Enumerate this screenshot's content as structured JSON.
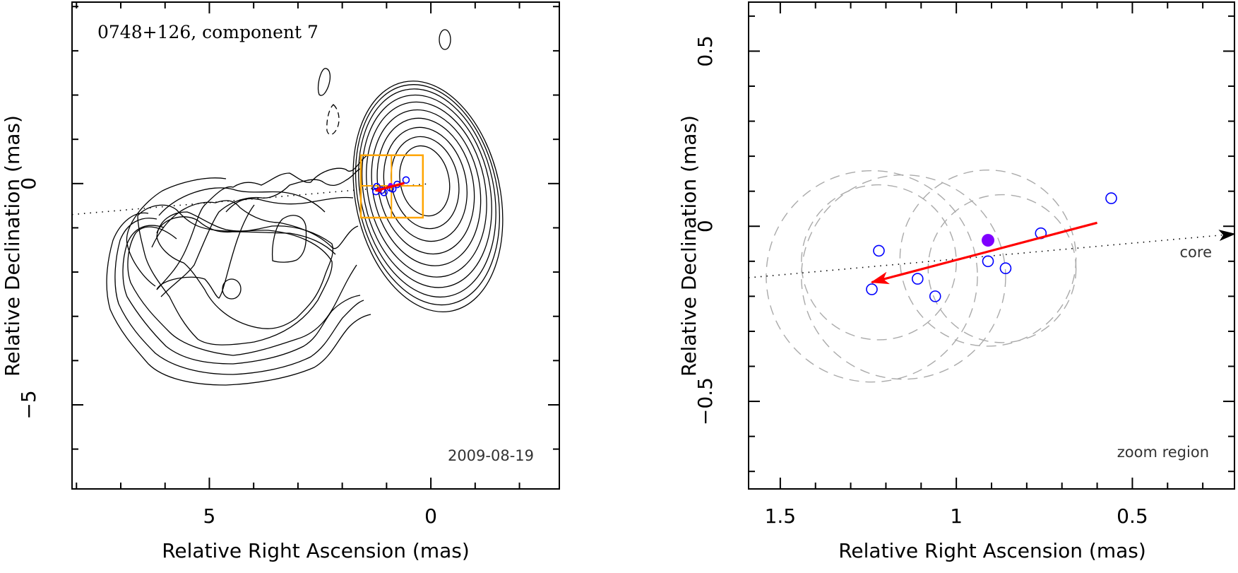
{
  "chart_data": [
    {
      "type": "scatter",
      "panel": "left",
      "title": "0748+126, component 7",
      "date_label": "2009-08-19",
      "xlabel": "Relative Right Ascension (mas)",
      "ylabel": "Relative Declination (mas)",
      "xlim": [
        8.1,
        -2.9
      ],
      "ylim": [
        -6.9,
        4.1
      ],
      "x_major_ticks": [
        5,
        0
      ],
      "x_tick_labels": [
        "5",
        "0"
      ],
      "x_minor_step": 1,
      "y_major_ticks": [
        0,
        -5
      ],
      "y_tick_labels": [
        "0",
        "−5"
      ],
      "y_minor_step": 1,
      "colors": {
        "box": "#ffa500",
        "points": "#0000ff",
        "mean": "#7f00ff",
        "arrow": "#ff0000",
        "contours": "#000000"
      },
      "zoom_box": {
        "x": [
          1.58,
          0.18
        ],
        "y": [
          0.64,
          -0.77
        ],
        "cross": [
          0.89,
          -0.05
        ]
      },
      "core_line": {
        "from": [
          8.1,
          -0.7
        ],
        "to": [
          0.0,
          0.0
        ]
      },
      "core_contours": {
        "center": [
          0.14,
          0.06
        ],
        "semi_axes": [
          [
            0.55,
            0.8
          ],
          [
            0.75,
            1.05
          ],
          [
            0.92,
            1.3
          ],
          [
            1.07,
            1.55
          ],
          [
            1.2,
            1.78
          ],
          [
            1.32,
            2.0
          ],
          [
            1.42,
            2.2
          ],
          [
            1.5,
            2.38
          ],
          [
            1.57,
            2.52
          ],
          [
            1.63,
            2.64
          ]
        ]
      },
      "points": [
        [
          1.22,
          -0.07
        ],
        [
          1.24,
          -0.18
        ],
        [
          1.11,
          -0.15
        ],
        [
          1.06,
          -0.2
        ],
        [
          0.91,
          -0.1
        ],
        [
          0.86,
          -0.12
        ],
        [
          0.76,
          -0.02
        ],
        [
          0.56,
          0.08
        ]
      ],
      "mean_point": [
        0.91,
        -0.04
      ],
      "arrow": {
        "from": [
          0.6,
          0.01
        ],
        "to": [
          1.24,
          -0.16
        ]
      }
    },
    {
      "type": "scatter",
      "panel": "right",
      "xlabel": "Relative Right Ascension (mas)",
      "ylabel": "Relative Declination (mas)",
      "xlim": [
        1.59,
        0.21
      ],
      "ylim": [
        -0.75,
        0.64
      ],
      "x_major_ticks": [
        1.5,
        1.0,
        0.5
      ],
      "x_tick_labels": [
        "1.5",
        "1",
        "0.5"
      ],
      "x_minor_step": 0.1,
      "y_major_ticks": [
        0.5,
        0,
        -0.5
      ],
      "y_tick_labels": [
        "0.5",
        "0",
        "−0.5"
      ],
      "y_minor_step": 0.1,
      "annotations": {
        "core": "core",
        "zoom_region": "zoom region"
      },
      "points": [
        [
          1.22,
          -0.07
        ],
        [
          1.24,
          -0.18
        ],
        [
          1.11,
          -0.15
        ],
        [
          1.06,
          -0.2
        ],
        [
          0.91,
          -0.1
        ],
        [
          0.86,
          -0.12
        ],
        [
          0.76,
          -0.02
        ],
        [
          0.56,
          0.08
        ]
      ],
      "mean_point": [
        0.91,
        -0.04
      ],
      "arrow": {
        "from": [
          0.6,
          0.01
        ],
        "to": [
          1.24,
          -0.16
        ]
      },
      "core_direction": {
        "from": [
          1.59,
          -0.147
        ],
        "to": [
          0.21,
          -0.022
        ]
      },
      "error_circles": [
        {
          "center": [
            1.24,
            -0.143
          ],
          "radius": 0.3
        },
        {
          "center": [
            1.15,
            -0.145
          ],
          "radius": 0.29
        },
        {
          "center": [
            1.22,
            -0.103
          ],
          "radius": 0.22
        },
        {
          "center": [
            0.91,
            -0.091
          ],
          "radius": 0.25
        },
        {
          "center": [
            0.87,
            -0.121
          ],
          "radius": 0.21
        }
      ],
      "colors": {
        "points": "#0000ff",
        "mean": "#7f00ff",
        "arrow": "#ff0000",
        "circles": "#aaaaaa"
      }
    }
  ]
}
